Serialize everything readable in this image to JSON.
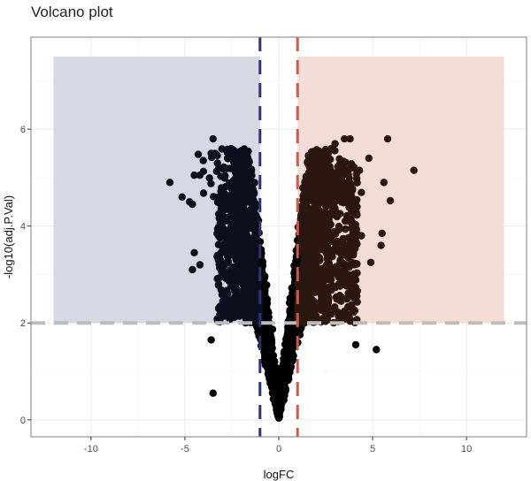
{
  "chart_data": {
    "type": "scatter",
    "title": "Volcano plot",
    "xlabel": "logFC",
    "ylabel": "-log10(adj.P.Val)",
    "xlim": [
      -13.2,
      13.2
    ],
    "ylim": [
      -0.35,
      7.9
    ],
    "x_ticks": [
      -10,
      -5,
      0,
      5,
      10
    ],
    "y_ticks": [
      0,
      2,
      4,
      6
    ],
    "x_tick_labels": [
      "-10",
      "-5",
      "0",
      "5",
      "10"
    ],
    "y_tick_labels": [
      "0",
      "2",
      "4",
      "6"
    ],
    "grid": true,
    "legend": "none",
    "thresholds": {
      "logFC_down": -1,
      "logFC_up": 1,
      "neg_log10_adjP": 2
    },
    "regions": [
      {
        "name": "down",
        "x": [
          -12,
          -1
        ],
        "y": [
          2,
          7.5
        ],
        "color": "#d4d9e4"
      },
      {
        "name": "up",
        "x": [
          1,
          12
        ],
        "y": [
          2,
          7.5
        ],
        "color": "#f5ddd7"
      }
    ],
    "colors": {
      "down_line": "#2e3470",
      "up_line": "#cd5a4b",
      "p_line": "#bdbdbd",
      "points": "#000000"
    },
    "outlier_points": [
      {
        "x": -5.8,
        "y": 4.9
      },
      {
        "x": -5.15,
        "y": 4.6
      },
      {
        "x": -4.75,
        "y": 4.5
      },
      {
        "x": -4.6,
        "y": 4.45
      },
      {
        "x": -4.5,
        "y": 5.05
      },
      {
        "x": -4.2,
        "y": 5.05
      },
      {
        "x": -3.5,
        "y": 5.8
      },
      {
        "x": -3.4,
        "y": 5.5
      },
      {
        "x": -3.6,
        "y": 5.5
      },
      {
        "x": -4.5,
        "y": 3.45
      },
      {
        "x": -4.6,
        "y": 3.1
      },
      {
        "x": -4.2,
        "y": 3.2
      },
      {
        "x": -3.2,
        "y": 2.8
      },
      {
        "x": -3.6,
        "y": 1.65
      },
      {
        "x": -3.5,
        "y": 0.55
      },
      {
        "x": 7.2,
        "y": 5.15
      },
      {
        "x": 5.8,
        "y": 5.8
      },
      {
        "x": 4.8,
        "y": 5.4
      },
      {
        "x": 5.6,
        "y": 4.9
      },
      {
        "x": 5.5,
        "y": 3.85
      },
      {
        "x": 5.45,
        "y": 3.6
      },
      {
        "x": 5.2,
        "y": 1.45
      },
      {
        "x": 4.3,
        "y": 5.15
      },
      {
        "x": 3.8,
        "y": 5.8
      },
      {
        "x": 4.1,
        "y": 1.55
      },
      {
        "x": 4.4,
        "y": 3.8
      },
      {
        "x": 4.9,
        "y": 3.25
      },
      {
        "x": 3.5,
        "y": 5.8
      },
      {
        "x": 3.0,
        "y": 5.7
      },
      {
        "x": 2.8,
        "y": 5.6
      }
    ]
  }
}
